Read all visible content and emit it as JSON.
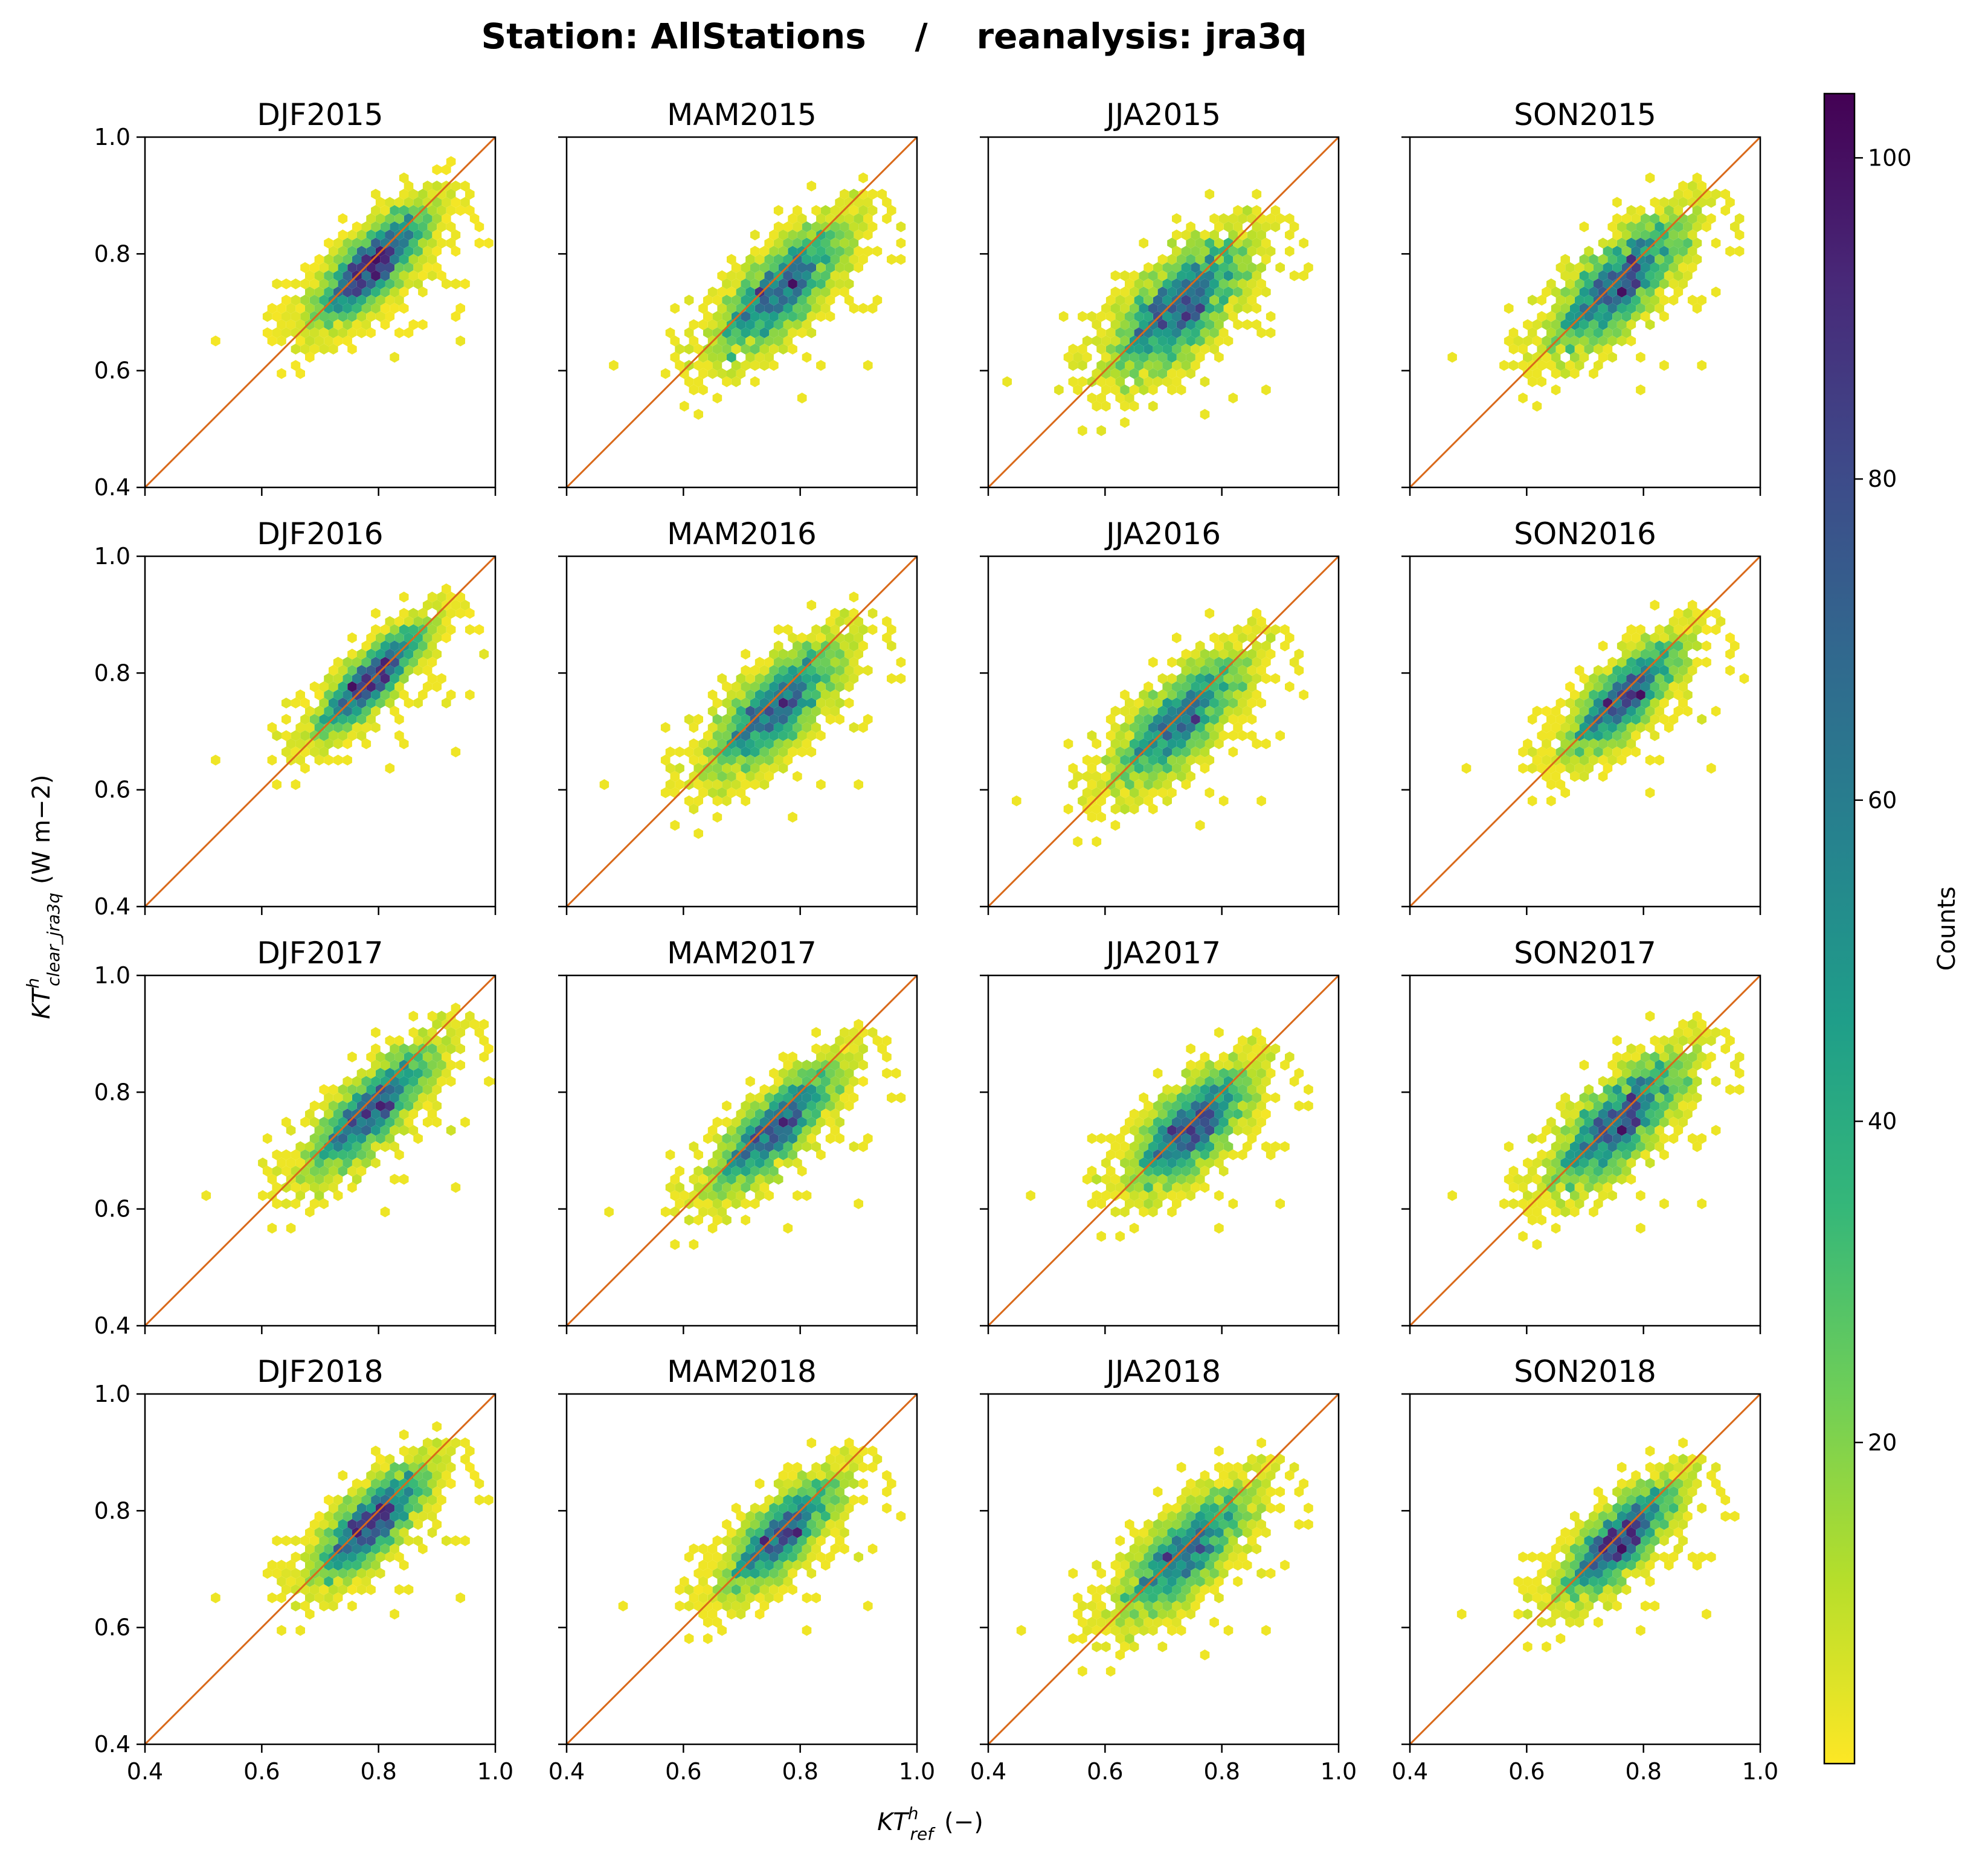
{
  "figure_title": "Station: AllStations    /    reanalysis: jra3q",
  "y_axis_label": {
    "base": "KT",
    "sup": "h",
    "sub": "clear_jra3q",
    "unit": "(W m−2)"
  },
  "x_axis_label": {
    "base": "KT",
    "sup": "h",
    "sub": "ref",
    "unit": "(−)"
  },
  "colorbar": {
    "label": "Counts",
    "min": 0,
    "max": 104,
    "ticks": [
      20,
      40,
      60,
      80,
      100
    ],
    "tick_labels": [
      "20",
      "40",
      "60",
      "80",
      "100"
    ],
    "colors": [
      "#fde725",
      "#b5de2b",
      "#6ece58",
      "#35b779",
      "#1f9e89",
      "#26828e",
      "#31688e",
      "#3e4989",
      "#482878",
      "#440154"
    ]
  },
  "identity_line_color": "#d9691a",
  "chart_data": {
    "type": "hexbin",
    "title": "Station: AllStations / reanalysis: jra3q",
    "xlabel": "KT^h_ref (−)",
    "ylabel": "KT^h_clear_jra3q (W m−2)",
    "xlim": [
      0.4,
      1.0
    ],
    "ylim": [
      0.4,
      1.0
    ],
    "x_ticks": [
      0.4,
      0.6,
      0.8,
      1.0
    ],
    "y_ticks": [
      0.4,
      0.6,
      0.8,
      1.0
    ],
    "x_tick_labels": [
      "0.4",
      "0.6",
      "0.8",
      "1.0"
    ],
    "y_tick_labels": [
      "0.4",
      "0.6",
      "0.8",
      "1.0"
    ],
    "reference_line": "y = x",
    "panels": [
      {
        "title": "DJF2015",
        "center": [
          0.79,
          0.78
        ],
        "spread_along": 0.07,
        "spread_across": 0.025,
        "peak": 100,
        "n_points": 380
      },
      {
        "title": "MAM2015",
        "center": [
          0.77,
          0.74
        ],
        "spread_along": 0.08,
        "spread_across": 0.03,
        "peak": 100,
        "n_points": 420
      },
      {
        "title": "JJA2015",
        "center": [
          0.73,
          0.71
        ],
        "spread_along": 0.08,
        "spread_across": 0.035,
        "peak": 90,
        "n_points": 440
      },
      {
        "title": "SON2015",
        "center": [
          0.76,
          0.75
        ],
        "spread_along": 0.08,
        "spread_across": 0.03,
        "peak": 100,
        "n_points": 430
      },
      {
        "title": "DJF2016",
        "center": [
          0.79,
          0.79
        ],
        "spread_along": 0.07,
        "spread_across": 0.02,
        "peak": 100,
        "n_points": 380
      },
      {
        "title": "MAM2016",
        "center": [
          0.76,
          0.74
        ],
        "spread_along": 0.08,
        "spread_across": 0.03,
        "peak": 95,
        "n_points": 420
      },
      {
        "title": "JJA2016",
        "center": [
          0.73,
          0.72
        ],
        "spread_along": 0.08,
        "spread_across": 0.03,
        "peak": 90,
        "n_points": 420
      },
      {
        "title": "SON2016",
        "center": [
          0.77,
          0.76
        ],
        "spread_along": 0.07,
        "spread_across": 0.025,
        "peak": 100,
        "n_points": 400
      },
      {
        "title": "DJF2017",
        "center": [
          0.79,
          0.77
        ],
        "spread_along": 0.08,
        "spread_across": 0.025,
        "peak": 95,
        "n_points": 400
      },
      {
        "title": "MAM2017",
        "center": [
          0.76,
          0.74
        ],
        "spread_along": 0.08,
        "spread_across": 0.025,
        "peak": 95,
        "n_points": 400
      },
      {
        "title": "JJA2017",
        "center": [
          0.75,
          0.74
        ],
        "spread_along": 0.07,
        "spread_across": 0.03,
        "peak": 90,
        "n_points": 400
      },
      {
        "title": "SON2017",
        "center": [
          0.76,
          0.75
        ],
        "spread_along": 0.08,
        "spread_across": 0.03,
        "peak": 100,
        "n_points": 440
      },
      {
        "title": "DJF2018",
        "center": [
          0.79,
          0.78
        ],
        "spread_along": 0.07,
        "spread_across": 0.025,
        "peak": 95,
        "n_points": 380
      },
      {
        "title": "MAM2018",
        "center": [
          0.77,
          0.76
        ],
        "spread_along": 0.07,
        "spread_across": 0.025,
        "peak": 95,
        "n_points": 400
      },
      {
        "title": "JJA2018",
        "center": [
          0.74,
          0.73
        ],
        "spread_along": 0.08,
        "spread_across": 0.03,
        "peak": 90,
        "n_points": 420
      },
      {
        "title": "SON2018",
        "center": [
          0.76,
          0.75
        ],
        "spread_along": 0.07,
        "spread_across": 0.025,
        "peak": 100,
        "n_points": 420
      }
    ]
  }
}
